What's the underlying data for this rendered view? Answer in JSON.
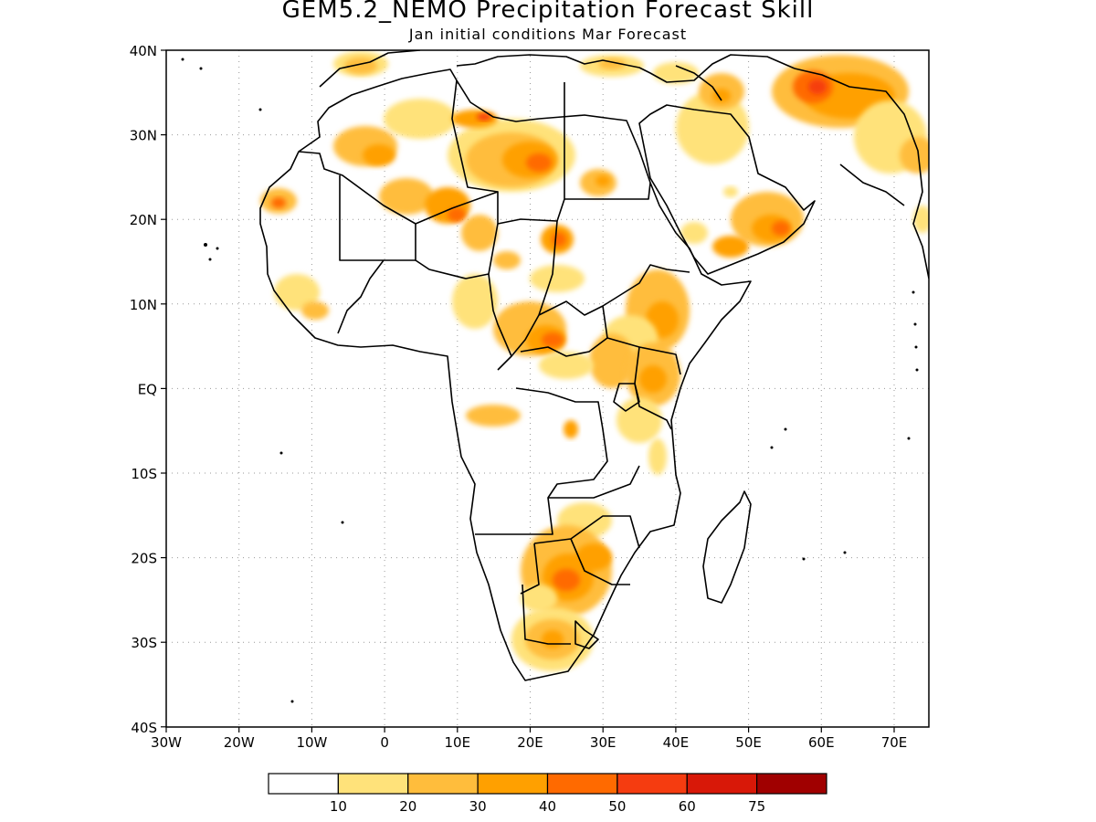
{
  "title": "GEM5.2_NEMO Precipitation Forecast Skill",
  "subtitle": "Jan initial conditions  Mar Forecast",
  "axes": {
    "lon_labels": [
      "30W",
      "20W",
      "10W",
      "0",
      "10E",
      "20E",
      "30E",
      "40E",
      "50E",
      "60E",
      "70E"
    ],
    "lat_labels": [
      "40N",
      "30N",
      "20N",
      "10N",
      "EQ",
      "10S",
      "20S",
      "30S",
      "40S"
    ]
  },
  "colorbar": {
    "colors": [
      "#ffffff",
      "#ffe27a",
      "#ffbd3c",
      "#ffa000",
      "#ff6a00",
      "#f53c10",
      "#d81808",
      "#a00000"
    ],
    "tick_labels": [
      "10",
      "20",
      "30",
      "40",
      "50",
      "60",
      "75"
    ]
  }
}
